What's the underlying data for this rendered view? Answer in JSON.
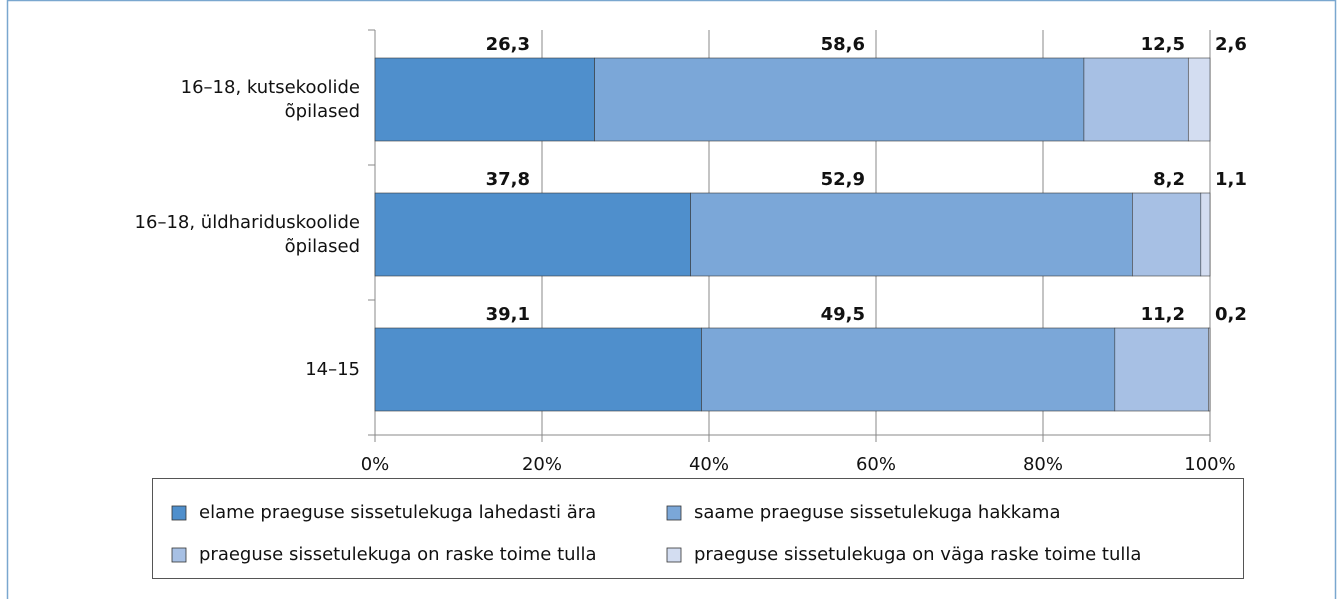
{
  "chart_data": {
    "type": "stacked-barh",
    "categories": [
      "16–18, kutsekoolide õpilased",
      "16–18, üldhariduskoolide õpilased",
      "14–15"
    ],
    "series": [
      {
        "name": "elame praeguse sissetulekuga lahedasti ära",
        "color": "#4f8fcc",
        "values": [
          26.3,
          37.8,
          39.1
        ],
        "value_labels": [
          "26,3",
          "37,8",
          "39,1"
        ]
      },
      {
        "name": "saame praeguse sissetulekuga hakkama",
        "color": "#7ba7d8",
        "values": [
          58.6,
          52.9,
          49.5
        ],
        "value_labels": [
          "58,6",
          "52,9",
          "49,5"
        ]
      },
      {
        "name": "praeguse sissetulekuga on raske toime tulla",
        "color": "#a7c0e4",
        "values": [
          12.5,
          8.2,
          11.2
        ],
        "value_labels": [
          "12,5",
          "8,2",
          "11,2"
        ]
      },
      {
        "name": "praeguse sissetulekuga on väga raske toime tulla",
        "color": "#d3ddf1",
        "values": [
          2.6,
          1.1,
          0.2
        ],
        "value_labels": [
          "2,6",
          "1,1",
          "0,2"
        ]
      }
    ],
    "xlim": [
      0,
      100
    ],
    "xticks": [
      {
        "value": 0,
        "label": "0%"
      },
      {
        "value": 20,
        "label": "20%"
      },
      {
        "value": 40,
        "label": "40%"
      },
      {
        "value": 60,
        "label": "60%"
      },
      {
        "value": 80,
        "label": "80%"
      },
      {
        "value": 100,
        "label": "100%"
      }
    ],
    "grid": true
  }
}
